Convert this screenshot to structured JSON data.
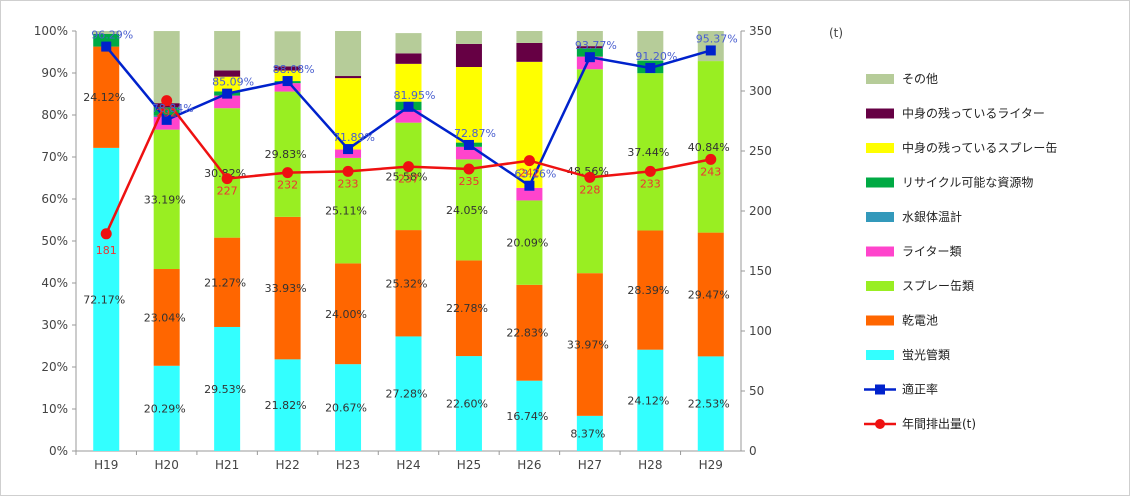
{
  "chart_data": {
    "type": "bar",
    "stacked": true,
    "categories": [
      "H19",
      "H20",
      "H21",
      "H22",
      "H23",
      "H24",
      "H25",
      "H26",
      "H27",
      "H28",
      "H29"
    ],
    "ylim_left": [
      0,
      100
    ],
    "ylim_right": [
      0,
      350
    ],
    "left_ticks": [
      "0%",
      "10%",
      "20%",
      "30%",
      "40%",
      "50%",
      "60%",
      "70%",
      "80%",
      "90%",
      "100%"
    ],
    "right_ticks": [
      "0",
      "50",
      "100",
      "150",
      "200",
      "250",
      "300",
      "350"
    ],
    "right_unit": "(t)",
    "grid": false,
    "legend_position": "right",
    "bar_series": [
      {
        "name": "蛍光管類",
        "color": "#33ffff",
        "values": [
          72.17,
          20.29,
          29.53,
          21.82,
          20.67,
          27.28,
          22.6,
          16.74,
          8.37,
          24.12,
          22.53
        ],
        "labels": [
          "72.17%",
          "20.29%",
          "29.53%",
          "21.82%",
          "20.67%",
          "27.28%",
          "22.60%",
          "16.74%",
          "8.37%",
          "24.12%",
          "22.53%"
        ]
      },
      {
        "name": "乾電池",
        "color": "#ff6600",
        "values": [
          24.12,
          23.04,
          21.27,
          33.93,
          24.0,
          25.32,
          22.78,
          22.83,
          33.97,
          28.39,
          29.47
        ],
        "labels": [
          "24.12%",
          "23.04%",
          "21.27%",
          "33.93%",
          "24.00%",
          "25.32%",
          "22.78%",
          "22.83%",
          "33.97%",
          "28.39%",
          "29.47%"
        ]
      },
      {
        "name": "スプレー缶類",
        "color": "#99ee22",
        "values": [
          0,
          33.19,
          30.82,
          29.83,
          25.11,
          25.58,
          24.05,
          20.09,
          48.56,
          37.44,
          40.84
        ],
        "labels": [
          "",
          "33.19%",
          "30.82%",
          "29.83%",
          "25.11%",
          "25.58%",
          "24.05%",
          "20.09%",
          "48.56%",
          "37.44%",
          "40.84%"
        ]
      },
      {
        "name": "ライター類",
        "color": "#ff44cc",
        "values": [
          0,
          3.0,
          3.0,
          2.0,
          2.0,
          3.0,
          3.0,
          3.0,
          3.0,
          0,
          0
        ]
      },
      {
        "name": "水銀体温計",
        "color": "#3399bb",
        "values": [
          0,
          0.3,
          0,
          0,
          0,
          0,
          0,
          0,
          0,
          0,
          0
        ]
      },
      {
        "name": "リサイクル可能な資源物",
        "color": "#00aa44",
        "values": [
          3.0,
          2.0,
          1.0,
          0.5,
          0,
          2.0,
          1.0,
          0,
          2.0,
          3.0,
          0
        ]
      },
      {
        "name": "中身の残っているスプレー缶",
        "color": "#ffff00",
        "values": [
          0,
          0,
          3.5,
          2.5,
          17.0,
          9.0,
          18.0,
          30.0,
          0,
          0,
          0
        ]
      },
      {
        "name": "中身の残っているライター",
        "color": "#660044",
        "values": [
          0,
          1.0,
          1.5,
          1.0,
          0.5,
          2.5,
          5.5,
          4.5,
          0.5,
          0,
          0
        ]
      },
      {
        "name": "その他",
        "color": "#b6cc99",
        "values": [
          0.71,
          17.17,
          9.38,
          8.35,
          10.72,
          4.82,
          3.07,
          2.84,
          3.6,
          7.05,
          7.16
        ]
      }
    ],
    "line_series": [
      {
        "name": "適正率",
        "color": "#0022cc",
        "marker": "square",
        "axis": "left",
        "values": [
          96.29,
          78.84,
          85.09,
          88.08,
          71.89,
          81.95,
          72.87,
          63.16,
          93.77,
          91.2,
          95.37
        ],
        "labels": [
          "96.29%",
          "78.84%",
          "85.09%",
          "88.08%",
          "71.89%",
          "81.95%",
          "72.87%",
          "63.16%",
          "93.77%",
          "91.20%",
          "95.37%"
        ]
      },
      {
        "name": "年間排出量(t)",
        "color": "#ee1111",
        "marker": "circle",
        "axis": "right",
        "values": [
          181,
          292,
          227,
          232,
          233,
          237,
          235,
          242,
          228,
          233,
          243
        ],
        "labels": [
          "181",
          "292",
          "227",
          "232",
          "233",
          "237",
          "235",
          "242",
          "228",
          "233",
          "243"
        ]
      }
    ],
    "legend_order": [
      "その他",
      "中身の残っているライター",
      "中身の残っているスプレー缶",
      "リサイクル可能な資源物",
      "水銀体温計",
      "ライター類",
      "スプレー缶類",
      "乾電池",
      "蛍光管類",
      "適正率",
      "年間排出量(t)"
    ]
  }
}
